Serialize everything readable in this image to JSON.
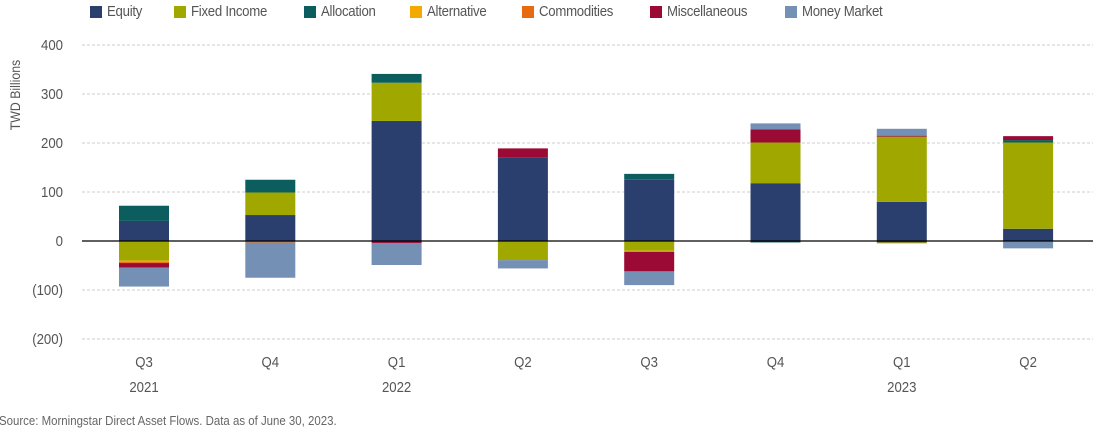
{
  "chart_data": {
    "type": "bar",
    "stacked": true,
    "title": "",
    "xlabel": "",
    "ylabel": "TWD Billions",
    "ylim": [
      -200,
      400
    ],
    "yticks": [
      400,
      300,
      200,
      100,
      0,
      -100,
      -200
    ],
    "ytick_labels": [
      "400",
      "300",
      "200",
      "100",
      "0",
      "(100)",
      "(200)"
    ],
    "grid": true,
    "legend_position": "top",
    "categories": [
      "Q3 2021",
      "Q4 2021",
      "Q1 2022",
      "Q2 2022",
      "Q3 2022",
      "Q4 2022",
      "Q1 2023",
      "Q2 2023"
    ],
    "category_labels": [
      {
        "quarter": "Q3",
        "year": "2021"
      },
      {
        "quarter": "Q4",
        "year": ""
      },
      {
        "quarter": "Q1",
        "year": "2022"
      },
      {
        "quarter": "Q2",
        "year": ""
      },
      {
        "quarter": "Q3",
        "year": ""
      },
      {
        "quarter": "Q4",
        "year": ""
      },
      {
        "quarter": "Q1",
        "year": "2023"
      },
      {
        "quarter": "Q2",
        "year": ""
      }
    ],
    "series": [
      {
        "name": "Equity",
        "color": "#2b3f6e",
        "values": [
          41,
          53,
          245,
          170,
          125,
          118,
          80,
          25
        ]
      },
      {
        "name": "Fixed Income",
        "color": "#a0a800",
        "values": [
          -40,
          46,
          78,
          -37,
          -20,
          83,
          133,
          176
        ]
      },
      {
        "name": "Allocation",
        "color": "#0c5e5e",
        "values": [
          31,
          26,
          18,
          0,
          12,
          -3,
          -3,
          5
        ]
      },
      {
        "name": "Alternative",
        "color": "#f2a900",
        "values": [
          -3,
          0,
          0,
          0,
          -2,
          0,
          -2,
          0
        ]
      },
      {
        "name": "Commodities",
        "color": "#e86a10",
        "values": [
          -2,
          -3,
          0,
          -2,
          0,
          0,
          0,
          0
        ]
      },
      {
        "name": "Miscellaneous",
        "color": "#9b0a34",
        "values": [
          -9,
          0,
          -4,
          19,
          -40,
          27,
          2,
          8
        ]
      },
      {
        "name": "Money Market",
        "color": "#7491b5",
        "values": [
          -39,
          -72,
          -45,
          -17,
          -28,
          12,
          14,
          -15
        ]
      }
    ]
  },
  "source": "Source: Morningstar Direct Asset Flows. Data as of June 30, 2023."
}
